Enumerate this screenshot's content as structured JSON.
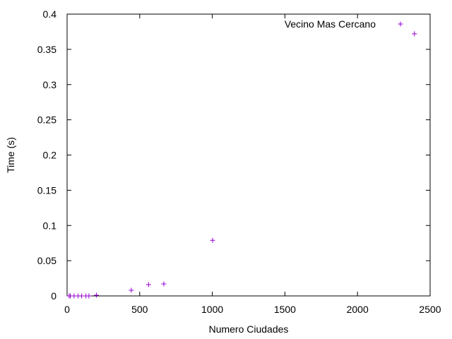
{
  "chart_data": {
    "type": "scatter",
    "title": "",
    "xlabel": "Numero Ciudades",
    "ylabel": "Time (s)",
    "xlim": [
      0,
      2500
    ],
    "ylim": [
      0,
      0.4
    ],
    "xticks": [
      0,
      500,
      1000,
      1500,
      2000,
      2500
    ],
    "yticks": [
      0,
      0.05,
      0.1,
      0.15,
      0.2,
      0.25,
      0.3,
      0.35,
      0.4
    ],
    "xtick_labels": [
      "0",
      "500",
      "1000",
      "1500",
      "2000",
      "2500"
    ],
    "ytick_labels": [
      "0",
      "0.05",
      "0.1",
      "0.15",
      "0.2",
      "0.25",
      "0.3",
      "0.35",
      "0.4"
    ],
    "grid": false,
    "legend_position": "top-right",
    "series": [
      {
        "name": "Vecino Mas Cercano",
        "color": "#9400d3",
        "marker": "plus",
        "points": [
          {
            "x": 14,
            "y": 0.0
          },
          {
            "x": 22,
            "y": 0.0
          },
          {
            "x": 48,
            "y": 0.0
          },
          {
            "x": 76,
            "y": 0.0
          },
          {
            "x": 100,
            "y": 0.0
          },
          {
            "x": 130,
            "y": 0.0
          },
          {
            "x": 150,
            "y": 0.0
          },
          {
            "x": 202,
            "y": 0.001
          },
          {
            "x": 442,
            "y": 0.008
          },
          {
            "x": 561,
            "y": 0.016
          },
          {
            "x": 666,
            "y": 0.017
          },
          {
            "x": 1002,
            "y": 0.079
          },
          {
            "x": 2392,
            "y": 0.372
          }
        ]
      }
    ]
  }
}
